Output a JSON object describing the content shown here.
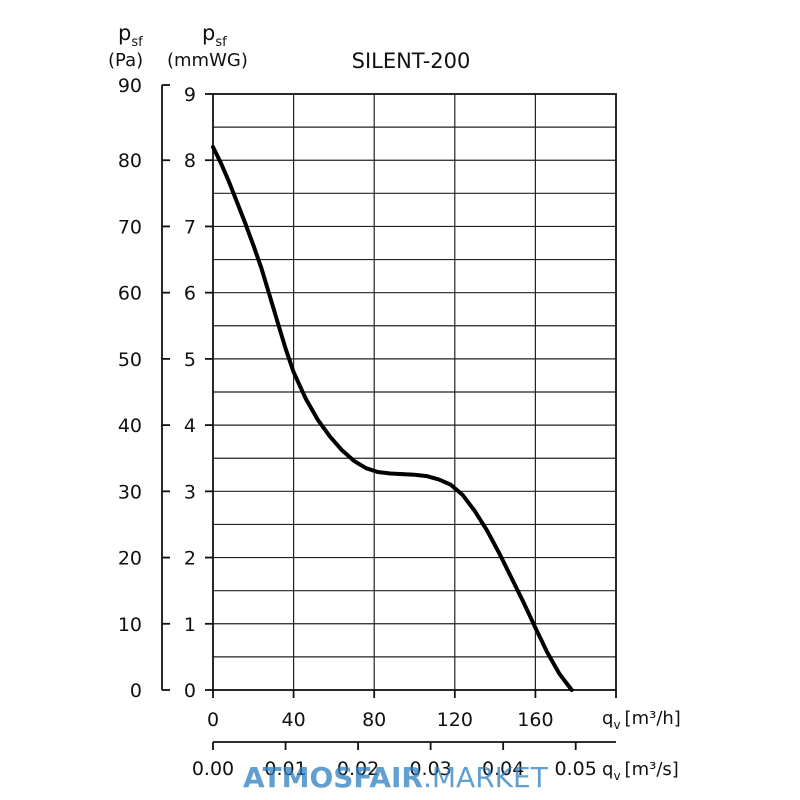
{
  "chart_data": {
    "type": "line",
    "title": "SILENT-200",
    "series": [
      {
        "name": "SILENT-200",
        "x": [
          0,
          4,
          8,
          12,
          16,
          20,
          24,
          28,
          32,
          36,
          40,
          46,
          52,
          58,
          64,
          70,
          76,
          82,
          88,
          94,
          100,
          106,
          112,
          118,
          124,
          130,
          136,
          142,
          148,
          154,
          160,
          166,
          172,
          178
        ],
        "y": [
          82,
          79.5,
          76.7,
          73.6,
          70.5,
          67.2,
          63.7,
          59.7,
          55.6,
          51.6,
          48,
          44,
          40.8,
          38.3,
          36.2,
          34.6,
          33.5,
          32.9,
          32.7,
          32.6,
          32.5,
          32.3,
          31.8,
          31.0,
          29.4,
          27.0,
          24.1,
          20.7,
          17.0,
          13.3,
          9.4,
          5.6,
          2.4,
          0
        ]
      }
    ],
    "y_axis_pa": {
      "label_main": "p",
      "label_sub": "sf",
      "unit": "(Pa)",
      "min": 0,
      "max": 90,
      "ticks": [
        "0",
        "10",
        "20",
        "30",
        "40",
        "50",
        "60",
        "70",
        "80",
        "90"
      ]
    },
    "y_axis_mmwg": {
      "label_main": "p",
      "label_sub": "sf",
      "unit": "(mmWG)",
      "min": 0,
      "max": 9,
      "ticks": [
        "0",
        "1",
        "2",
        "3",
        "4",
        "5",
        "6",
        "7",
        "8",
        "9"
      ]
    },
    "x_axis_m3h": {
      "label_main": "q",
      "label_sub": "v",
      "unit": "[m³/h]",
      "min": 0,
      "max": 200,
      "ticks": [
        "0",
        "40",
        "80",
        "120",
        "160"
      ],
      "tick_values": [
        0,
        40,
        80,
        120,
        160
      ]
    },
    "x_axis_m3s": {
      "label_main": "q",
      "label_sub": "v",
      "unit": "[m³/s]",
      "ticks": [
        "0.00",
        "0.01",
        "0.02",
        "0.03",
        "0.04",
        "0.05"
      ],
      "tick_values": [
        0,
        0.01,
        0.02,
        0.03,
        0.04,
        0.05
      ]
    },
    "grid": true
  },
  "watermark": {
    "bold": "ATMOSFAIR",
    "light": ".MARKET"
  },
  "colors": {
    "curve": "#000000",
    "grid": "#222222",
    "watermark": "#2d7fc1"
  }
}
